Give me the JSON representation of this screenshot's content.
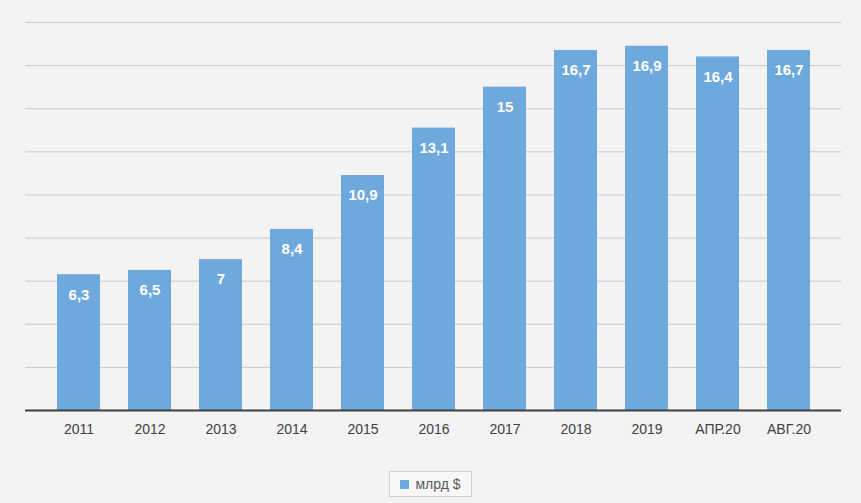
{
  "chart_data": {
    "type": "bar",
    "categories": [
      "2011",
      "2012",
      "2013",
      "2014",
      "2015",
      "2016",
      "2017",
      "2018",
      "2019",
      "АПР.20",
      "АВГ.20"
    ],
    "series": [
      {
        "name": "млрд $",
        "color": "#6fa8dc",
        "values": [
          6.3,
          6.5,
          7,
          8.4,
          10.9,
          13.1,
          15,
          16.7,
          16.9,
          16.4,
          16.7
        ],
        "value_labels": [
          "6,3",
          "6,5",
          "7",
          "8,4",
          "10,9",
          "13,1",
          "15",
          "16,7",
          "16,9",
          "16,4",
          "16,7"
        ]
      }
    ],
    "ylim": [
      0,
      18
    ],
    "yticks": [
      0,
      2,
      4,
      6,
      8,
      10,
      12,
      14,
      16,
      18
    ],
    "grid": true,
    "data_labels": true,
    "tick_labels": "x",
    "legend": "bottom"
  }
}
